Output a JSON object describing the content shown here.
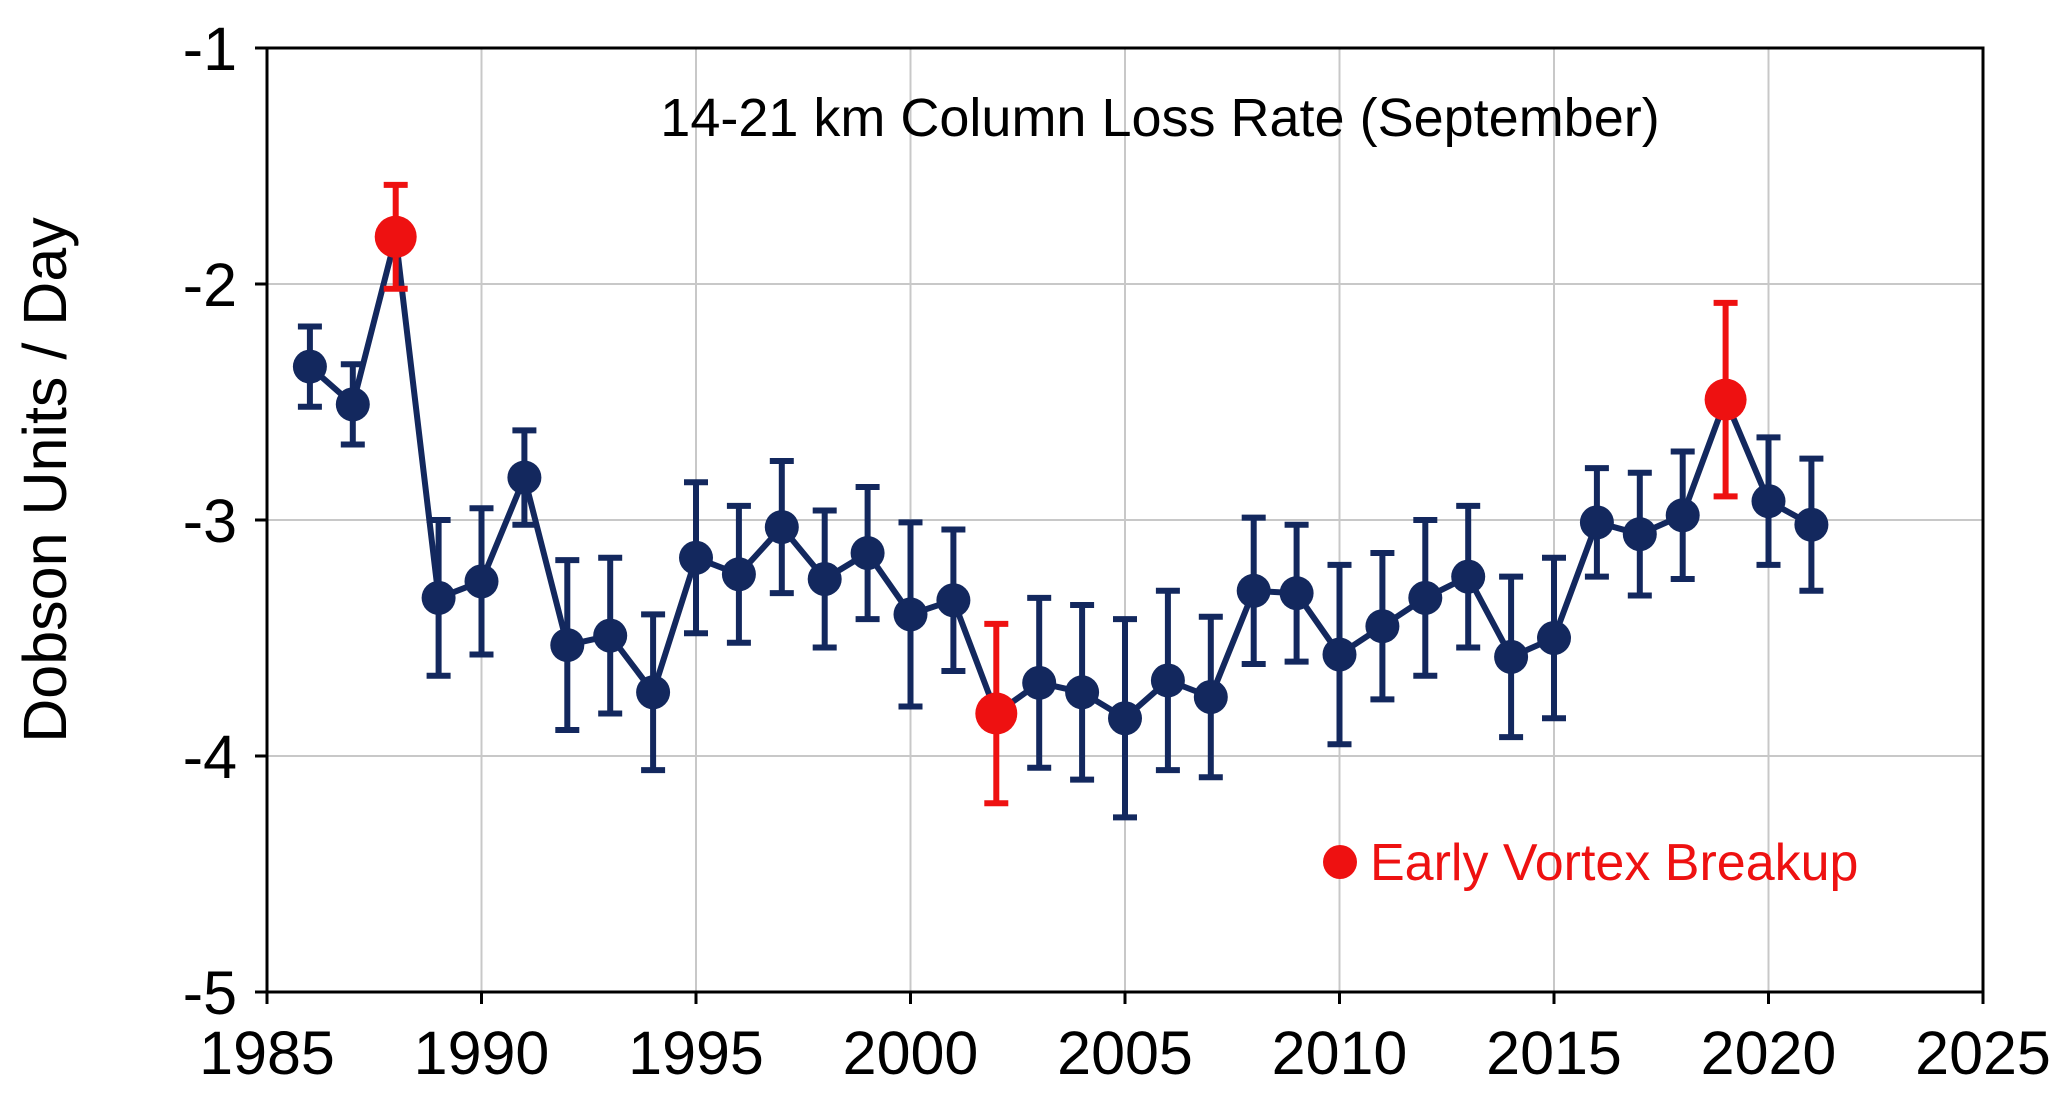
{
  "chart_data": {
    "type": "line",
    "title": "14-21 km Column Loss Rate (September)",
    "xlabel": "",
    "ylabel": "Dobson Units / Day",
    "xlim": [
      1985,
      2025
    ],
    "ylim": [
      -5,
      -1
    ],
    "x_ticks": [
      1985,
      1990,
      1995,
      2000,
      2005,
      2010,
      2015,
      2020,
      2025
    ],
    "y_ticks": [
      -5,
      -4,
      -3,
      -2,
      -1
    ],
    "grid": true,
    "legend": "lower-right",
    "colors": {
      "series": "#13285e",
      "highlight": "#ee1111"
    },
    "series": [
      {
        "name": "",
        "points": [
          {
            "x": 1986,
            "y": -2.35,
            "err": 0.17
          },
          {
            "x": 1987,
            "y": -2.51,
            "err": 0.17
          },
          {
            "x": 1988,
            "y": -1.8,
            "err": 0.22,
            "highlight": true
          },
          {
            "x": 1989,
            "y": -3.33,
            "err": 0.33
          },
          {
            "x": 1990,
            "y": -3.26,
            "err": 0.31
          },
          {
            "x": 1991,
            "y": -2.82,
            "err": 0.2
          },
          {
            "x": 1992,
            "y": -3.53,
            "err": 0.36
          },
          {
            "x": 1993,
            "y": -3.49,
            "err": 0.33
          },
          {
            "x": 1994,
            "y": -3.73,
            "err": 0.33
          },
          {
            "x": 1995,
            "y": -3.16,
            "err": 0.32
          },
          {
            "x": 1996,
            "y": -3.23,
            "err": 0.29
          },
          {
            "x": 1997,
            "y": -3.03,
            "err": 0.28
          },
          {
            "x": 1998,
            "y": -3.25,
            "err": 0.29
          },
          {
            "x": 1999,
            "y": -3.14,
            "err": 0.28
          },
          {
            "x": 2000,
            "y": -3.4,
            "err": 0.39
          },
          {
            "x": 2001,
            "y": -3.34,
            "err": 0.3
          },
          {
            "x": 2002,
            "y": -3.82,
            "err": 0.38,
            "highlight": true
          },
          {
            "x": 2003,
            "y": -3.69,
            "err": 0.36
          },
          {
            "x": 2004,
            "y": -3.73,
            "err": 0.37
          },
          {
            "x": 2005,
            "y": -3.84,
            "err": 0.42
          },
          {
            "x": 2006,
            "y": -3.68,
            "err": 0.38
          },
          {
            "x": 2007,
            "y": -3.75,
            "err": 0.34
          },
          {
            "x": 2008,
            "y": -3.3,
            "err": 0.31
          },
          {
            "x": 2009,
            "y": -3.31,
            "err": 0.29
          },
          {
            "x": 2010,
            "y": -3.57,
            "err": 0.38
          },
          {
            "x": 2011,
            "y": -3.45,
            "err": 0.31
          },
          {
            "x": 2012,
            "y": -3.33,
            "err": 0.33
          },
          {
            "x": 2013,
            "y": -3.24,
            "err": 0.3
          },
          {
            "x": 2014,
            "y": -3.58,
            "err": 0.34
          },
          {
            "x": 2015,
            "y": -3.5,
            "err": 0.34
          },
          {
            "x": 2016,
            "y": -3.01,
            "err": 0.23
          },
          {
            "x": 2017,
            "y": -3.06,
            "err": 0.26
          },
          {
            "x": 2018,
            "y": -2.98,
            "err": 0.27
          },
          {
            "x": 2019,
            "y": -2.49,
            "err": 0.41,
            "highlight": true
          },
          {
            "x": 2020,
            "y": -2.92,
            "err": 0.27
          },
          {
            "x": 2021,
            "y": -3.02,
            "err": 0.28
          }
        ]
      }
    ],
    "legend_entries": [
      {
        "label": "Early Vortex Breakup",
        "color": "#ee1111"
      }
    ]
  }
}
